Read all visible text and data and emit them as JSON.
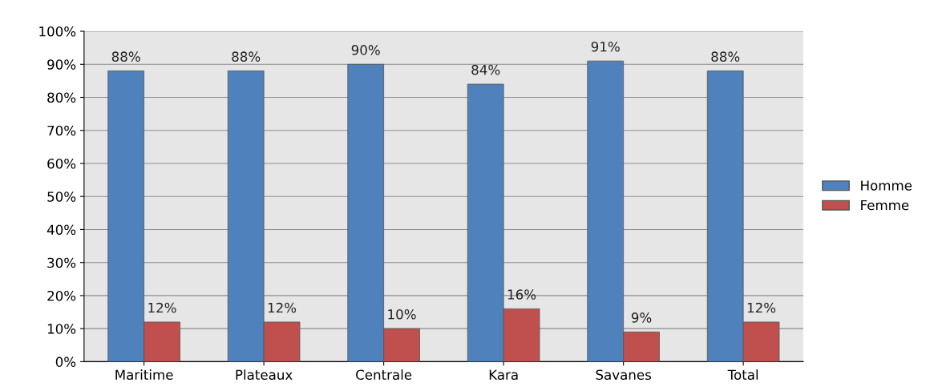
{
  "chart_data": {
    "type": "bar",
    "categories": [
      "Maritime",
      "Plateaux",
      "Centrale",
      "Kara",
      "Savanes",
      "Total"
    ],
    "series": [
      {
        "name": "Homme",
        "color": "#4f81bd",
        "values": [
          88,
          88,
          90,
          84,
          91,
          88
        ],
        "value_labels": [
          "88%",
          "88%",
          "90%",
          "84%",
          "91%",
          "88%"
        ]
      },
      {
        "name": "Femme",
        "color": "#c0504d",
        "values": [
          12,
          12,
          10,
          16,
          9,
          12
        ],
        "value_labels": [
          "12%",
          "12%",
          "10%",
          "16%",
          "9%",
          "12%"
        ]
      }
    ],
    "ylim": [
      0,
      100
    ],
    "yticks": [
      {
        "value": 0,
        "label": "0%"
      },
      {
        "value": 10,
        "label": "10%"
      },
      {
        "value": 20,
        "label": "20%"
      },
      {
        "value": 30,
        "label": "30%"
      },
      {
        "value": 40,
        "label": "40%"
      },
      {
        "value": 50,
        "label": "50%"
      },
      {
        "value": 60,
        "label": "60%"
      },
      {
        "value": 70,
        "label": "70%"
      },
      {
        "value": 80,
        "label": "80%"
      },
      {
        "value": 90,
        "label": "90%"
      },
      {
        "value": 100,
        "label": "100%"
      }
    ],
    "grid": "y",
    "legend": "right"
  }
}
